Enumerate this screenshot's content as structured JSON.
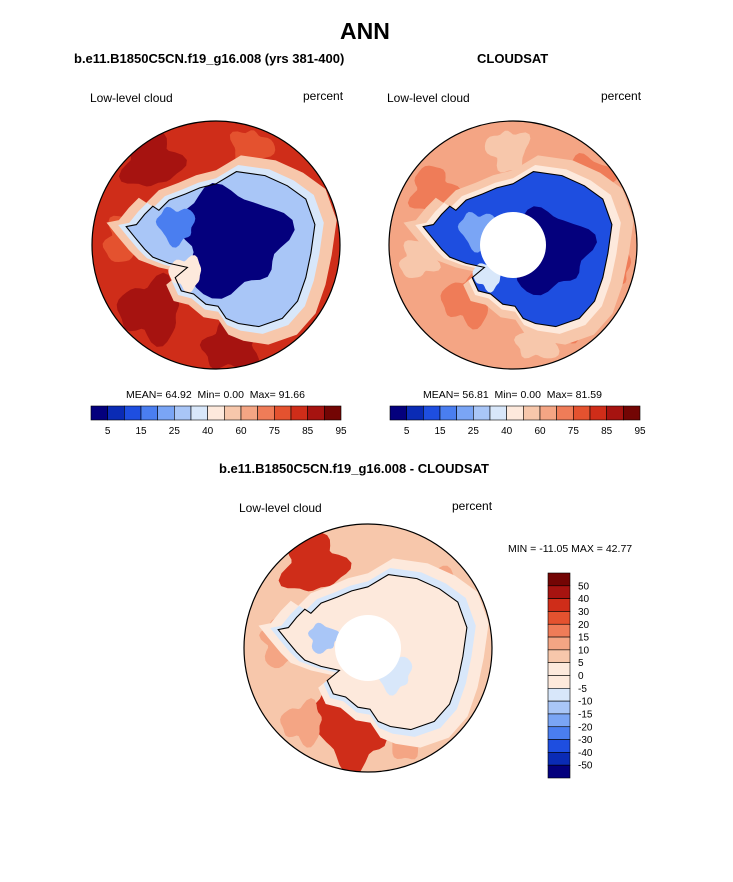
{
  "title": "ANN",
  "colors": {
    "seq_palette": [
      "#04007d",
      "#0a2bb5",
      "#1e4ee0",
      "#4a7ef0",
      "#7aa5f5",
      "#a9c6f7",
      "#d8e7fa",
      "#fde9dc",
      "#f7c7ab",
      "#f4a584",
      "#ef7c58",
      "#e4522f",
      "#cf2d19",
      "#a61310",
      "#730504"
    ],
    "diff_palette": [
      "#04007d",
      "#0a2bb5",
      "#1e4ee0",
      "#4a7ef0",
      "#7aa5f5",
      "#a9c6f7",
      "#d8e7fa",
      "#fde9dc",
      "#f7c7ab",
      "#f4a584",
      "#ef7c58",
      "#e4522f",
      "#cf2d19",
      "#a61310",
      "#730504"
    ],
    "coast": "#000000",
    "border": "#000000"
  },
  "chart_data": [
    {
      "type": "heatmap",
      "projection": "south-polar-stereographic",
      "title": "b.e11.B1850C5CN.f19_g16.008 (yrs 381-400)",
      "left_label": "Low-level cloud",
      "right_label": "percent",
      "stats": {
        "mean_label": "MEAN=",
        "mean": "64.92",
        "min_label": "Min=",
        "min": "0.00",
        "max_label": "Max=",
        "max": "91.66"
      },
      "colorbar": {
        "orientation": "horizontal",
        "tick_labels": [
          "5",
          "15",
          "25",
          "40",
          "60",
          "75",
          "85",
          "95"
        ],
        "bins": 15
      },
      "field_summary": {
        "ocean_value": 85,
        "sea_ice_edge_value": 60,
        "antarctic_interior_value": 5
      }
    },
    {
      "type": "heatmap",
      "projection": "south-polar-stereographic",
      "title": "CLOUDSAT",
      "left_label": "Low-level cloud",
      "right_label": "percent",
      "stats": {
        "mean_label": "MEAN=",
        "mean": "56.81",
        "min_label": "Min=",
        "min": "0.00",
        "max_label": "Max=",
        "max": "81.59"
      },
      "colorbar": {
        "orientation": "horizontal",
        "tick_labels": [
          "5",
          "15",
          "25",
          "40",
          "60",
          "75",
          "85",
          "95"
        ],
        "bins": 15
      },
      "field_summary": {
        "ocean_value": 70,
        "sea_ice_edge_value": 60,
        "antarctic_interior_value": 5,
        "missing_pole_hole": true
      }
    },
    {
      "type": "heatmap",
      "projection": "south-polar-stereographic",
      "title": "b.e11.B1850C5CN.f19_g16.008 - CLOUDSAT",
      "left_label": "Low-level cloud",
      "right_label": "percent",
      "minmax_text": "MIN = -11.05 MAX =  42.77",
      "colorbar": {
        "orientation": "vertical",
        "tick_labels": [
          "50",
          "40",
          "30",
          "20",
          "15",
          "10",
          "5",
          "0",
          "-5",
          "-10",
          "-15",
          "-20",
          "-30",
          "-40",
          "-50"
        ],
        "bins": 16
      },
      "field_summary": {
        "ocean_value": 10,
        "west_antarctic_value": 25,
        "coast_value": -5,
        "missing_pole_hole": true
      }
    }
  ]
}
